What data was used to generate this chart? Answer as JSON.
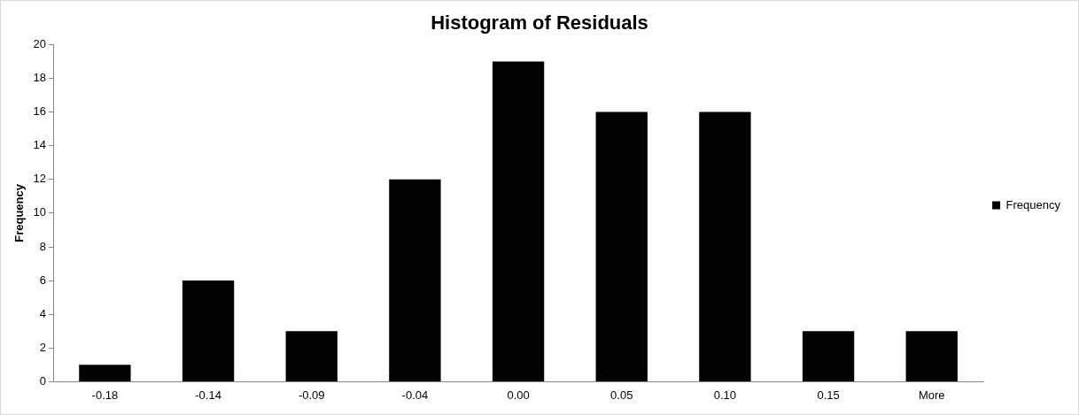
{
  "chart_data": {
    "type": "bar",
    "title": "Histogram of Residuals",
    "ylabel": "Frequency",
    "categories": [
      "-0.18",
      "-0.14",
      "-0.09",
      "-0.04",
      "0.00",
      "0.05",
      "0.10",
      "0.15",
      "More"
    ],
    "series": [
      {
        "name": "Frequency",
        "color": "#000000",
        "values": [
          1,
          6,
          3,
          12,
          19,
          16,
          16,
          3,
          3
        ]
      }
    ],
    "ylim": [
      0,
      20
    ],
    "yticks": [
      0,
      2,
      4,
      6,
      8,
      10,
      12,
      14,
      16,
      18,
      20
    ],
    "grid": false,
    "legend": "right"
  }
}
